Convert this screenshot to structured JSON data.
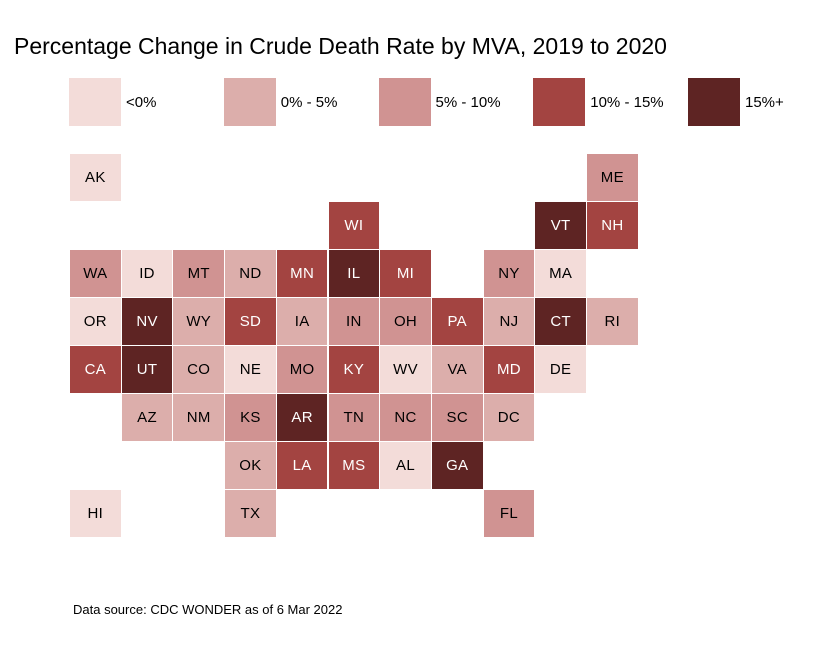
{
  "title": "Percentage Change in Crude Death Rate by MVA, 2019 to 2020",
  "footer": {
    "text": "Data source: CDC WONDER as of 6 Mar 2022"
  },
  "legend": {
    "bins": [
      {
        "label": "<0%",
        "color": "#f3dcd9",
        "label_text_color": "#000000"
      },
      {
        "label": "0% - 5%",
        "color": "#dcaeab",
        "label_text_color": "#000000"
      },
      {
        "label": "5% - 10%",
        "color": "#d09392",
        "label_text_color": "#000000"
      },
      {
        "label": "10% - 15%",
        "color": "#a34441",
        "label_text_color": "#ffffff"
      },
      {
        "label": "15%+",
        "color": "#5e2423",
        "label_text_color": "#ffffff"
      }
    ]
  },
  "chart_data": {
    "type": "heatmap",
    "subtype": "us-state-tile-grid-map",
    "title": "Percentage Change in Crude Death Rate by MVA, 2019 to 2020",
    "legend_bins": [
      "<0%",
      "0% - 5%",
      "5% - 10%",
      "10% - 15%",
      "15%+"
    ],
    "grid": {
      "columns": 11,
      "rows": 8
    },
    "states": [
      {
        "abbr": "AK",
        "col": 1,
        "row": 1,
        "bin": "<0%"
      },
      {
        "abbr": "ME",
        "col": 11,
        "row": 1,
        "bin": "5% - 10%"
      },
      {
        "abbr": "WI",
        "col": 6,
        "row": 2,
        "bin": "10% - 15%"
      },
      {
        "abbr": "VT",
        "col": 10,
        "row": 2,
        "bin": "15%+"
      },
      {
        "abbr": "NH",
        "col": 11,
        "row": 2,
        "bin": "10% - 15%"
      },
      {
        "abbr": "WA",
        "col": 1,
        "row": 3,
        "bin": "5% - 10%"
      },
      {
        "abbr": "ID",
        "col": 2,
        "row": 3,
        "bin": "<0%"
      },
      {
        "abbr": "MT",
        "col": 3,
        "row": 3,
        "bin": "5% - 10%"
      },
      {
        "abbr": "ND",
        "col": 4,
        "row": 3,
        "bin": "0% - 5%"
      },
      {
        "abbr": "MN",
        "col": 5,
        "row": 3,
        "bin": "10% - 15%"
      },
      {
        "abbr": "IL",
        "col": 6,
        "row": 3,
        "bin": "15%+"
      },
      {
        "abbr": "MI",
        "col": 7,
        "row": 3,
        "bin": "10% - 15%"
      },
      {
        "abbr": "NY",
        "col": 9,
        "row": 3,
        "bin": "5% - 10%"
      },
      {
        "abbr": "MA",
        "col": 10,
        "row": 3,
        "bin": "<0%"
      },
      {
        "abbr": "OR",
        "col": 1,
        "row": 4,
        "bin": "<0%"
      },
      {
        "abbr": "NV",
        "col": 2,
        "row": 4,
        "bin": "15%+"
      },
      {
        "abbr": "WY",
        "col": 3,
        "row": 4,
        "bin": "0% - 5%"
      },
      {
        "abbr": "SD",
        "col": 4,
        "row": 4,
        "bin": "10% - 15%"
      },
      {
        "abbr": "IA",
        "col": 5,
        "row": 4,
        "bin": "0% - 5%"
      },
      {
        "abbr": "IN",
        "col": 6,
        "row": 4,
        "bin": "5% - 10%"
      },
      {
        "abbr": "OH",
        "col": 7,
        "row": 4,
        "bin": "5% - 10%"
      },
      {
        "abbr": "PA",
        "col": 8,
        "row": 4,
        "bin": "10% - 15%"
      },
      {
        "abbr": "NJ",
        "col": 9,
        "row": 4,
        "bin": "0% - 5%"
      },
      {
        "abbr": "CT",
        "col": 10,
        "row": 4,
        "bin": "15%+"
      },
      {
        "abbr": "RI",
        "col": 11,
        "row": 4,
        "bin": "0% - 5%"
      },
      {
        "abbr": "CA",
        "col": 1,
        "row": 5,
        "bin": "10% - 15%"
      },
      {
        "abbr": "UT",
        "col": 2,
        "row": 5,
        "bin": "15%+"
      },
      {
        "abbr": "CO",
        "col": 3,
        "row": 5,
        "bin": "0% - 5%"
      },
      {
        "abbr": "NE",
        "col": 4,
        "row": 5,
        "bin": "<0%"
      },
      {
        "abbr": "MO",
        "col": 5,
        "row": 5,
        "bin": "5% - 10%"
      },
      {
        "abbr": "KY",
        "col": 6,
        "row": 5,
        "bin": "10% - 15%"
      },
      {
        "abbr": "WV",
        "col": 7,
        "row": 5,
        "bin": "<0%"
      },
      {
        "abbr": "VA",
        "col": 8,
        "row": 5,
        "bin": "0% - 5%"
      },
      {
        "abbr": "MD",
        "col": 9,
        "row": 5,
        "bin": "10% - 15%"
      },
      {
        "abbr": "DE",
        "col": 10,
        "row": 5,
        "bin": "<0%"
      },
      {
        "abbr": "AZ",
        "col": 2,
        "row": 6,
        "bin": "0% - 5%"
      },
      {
        "abbr": "NM",
        "col": 3,
        "row": 6,
        "bin": "0% - 5%"
      },
      {
        "abbr": "KS",
        "col": 4,
        "row": 6,
        "bin": "5% - 10%"
      },
      {
        "abbr": "AR",
        "col": 5,
        "row": 6,
        "bin": "15%+"
      },
      {
        "abbr": "TN",
        "col": 6,
        "row": 6,
        "bin": "5% - 10%"
      },
      {
        "abbr": "NC",
        "col": 7,
        "row": 6,
        "bin": "5% - 10%"
      },
      {
        "abbr": "SC",
        "col": 8,
        "row": 6,
        "bin": "5% - 10%"
      },
      {
        "abbr": "DC",
        "col": 9,
        "row": 6,
        "bin": "0% - 5%"
      },
      {
        "abbr": "OK",
        "col": 4,
        "row": 7,
        "bin": "0% - 5%"
      },
      {
        "abbr": "LA",
        "col": 5,
        "row": 7,
        "bin": "10% - 15%"
      },
      {
        "abbr": "MS",
        "col": 6,
        "row": 7,
        "bin": "10% - 15%"
      },
      {
        "abbr": "AL",
        "col": 7,
        "row": 7,
        "bin": "<0%"
      },
      {
        "abbr": "GA",
        "col": 8,
        "row": 7,
        "bin": "15%+"
      },
      {
        "abbr": "HI",
        "col": 1,
        "row": 8,
        "bin": "<0%"
      },
      {
        "abbr": "TX",
        "col": 4,
        "row": 8,
        "bin": "0% - 5%"
      },
      {
        "abbr": "FL",
        "col": 9,
        "row": 8,
        "bin": "5% - 10%"
      }
    ]
  }
}
